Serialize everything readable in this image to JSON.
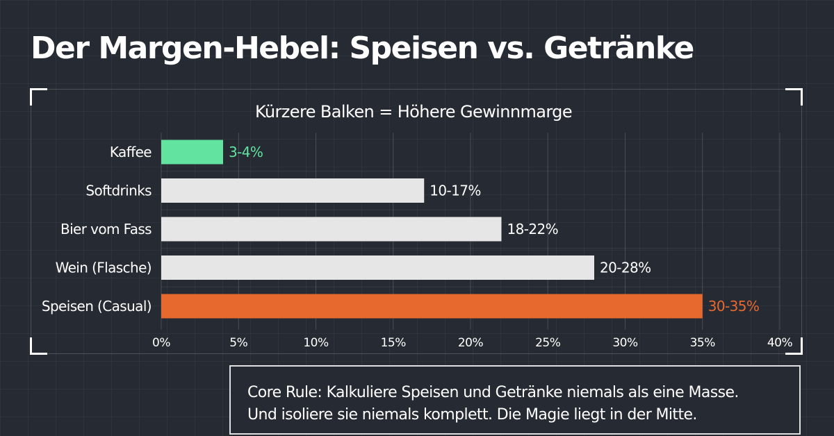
{
  "page": {
    "title": "Der Margen-Hebel: Speisen vs. Getränke"
  },
  "note": {
    "line1": "Core Rule: Kalkuliere Speisen und Getränke niemals als eine Masse.",
    "line2": "Und isoliere sie niemals komplett. Die Magie liegt in der Mitte."
  },
  "colors": {
    "background": "#262b33",
    "highlight_low": "#62e3a0",
    "highlight_high": "#e8692e",
    "neutral_bar": "#e6e6e6",
    "text": "#ffffff"
  },
  "chart_data": {
    "type": "bar",
    "orientation": "horizontal",
    "title": "Kürzere Balken = Höhere Gewinnmarge",
    "xlabel": "",
    "ylabel": "",
    "xlim": [
      0,
      40
    ],
    "xticks": [
      0,
      5,
      10,
      15,
      20,
      25,
      30,
      35,
      40
    ],
    "tick_suffix": "%",
    "grid": true,
    "categories": [
      "Kaffee",
      "Softdrinks",
      "Bier vom Fass",
      "Wein (Flasche)",
      "Speisen (Casual)"
    ],
    "values": [
      4,
      17,
      22,
      28,
      35
    ],
    "ranges": [
      [
        3,
        4
      ],
      [
        10,
        17
      ],
      [
        18,
        22
      ],
      [
        20,
        28
      ],
      [
        30,
        35
      ]
    ],
    "data_labels": [
      "3-4%",
      "10-17%",
      "18-22%",
      "20-28%",
      "30-35%"
    ],
    "bar_colors": [
      "#62e3a0",
      "#e6e6e6",
      "#e6e6e6",
      "#e6e6e6",
      "#e8692e"
    ],
    "label_colors": [
      "#62e3a0",
      "#ffffff",
      "#ffffff",
      "#ffffff",
      "#e8692e"
    ]
  }
}
